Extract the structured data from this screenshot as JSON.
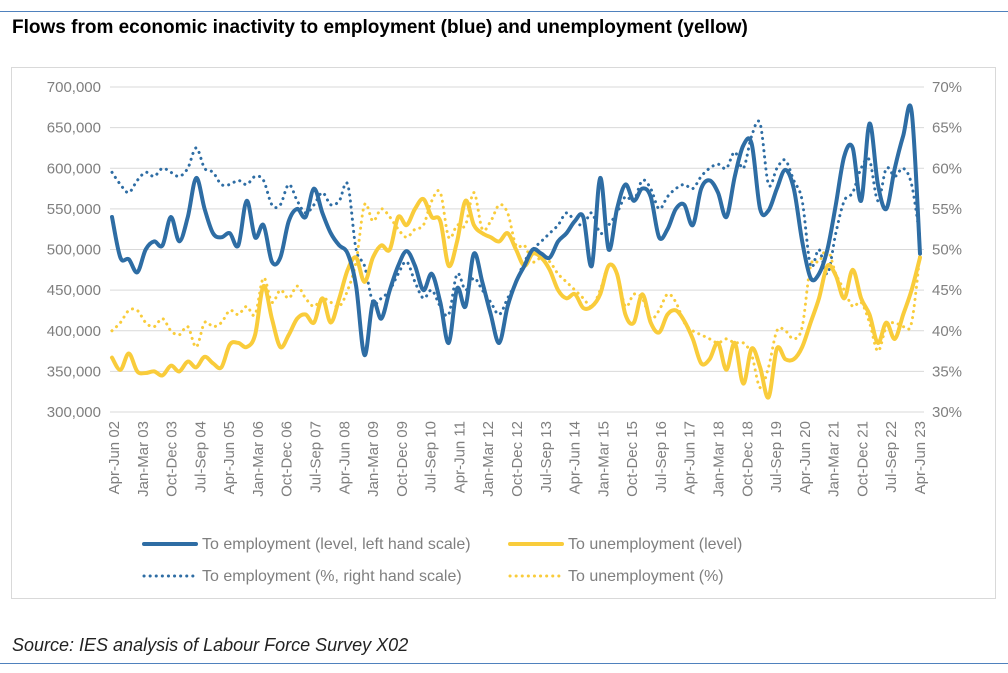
{
  "title": "Flows from economic inactivity to employment (blue) and unemployment (yellow)",
  "source": "Source: IES analysis of Labour Force Survey X02",
  "colors": {
    "blue": "#2e6da4",
    "yellow": "#f9cc3b",
    "axis_text": "#7f7f7f",
    "grid": "#d9d9d9"
  },
  "chart_data": {
    "type": "line",
    "title": "",
    "x_tick_labels": [
      "Apr-Jun 02",
      "Jan-Mar 03",
      "Oct-Dec 03",
      "Jul-Sep 04",
      "Apr-Jun 05",
      "Jan-Mar 06",
      "Oct-Dec 06",
      "Jul-Sep 07",
      "Apr-Jun 08",
      "Jan-Mar 09",
      "Oct-Dec 09",
      "Jul-Sep 10",
      "Apr-Jun 11",
      "Jan-Mar 12",
      "Oct-Dec 12",
      "Jul-Sep 13",
      "Apr-Jun 14",
      "Jan-Mar 15",
      "Oct-Dec 15",
      "Jul-Sep 16",
      "Apr-Jun 17",
      "Jan-Mar 18",
      "Oct-Dec 18",
      "Jul-Sep 19",
      "Apr-Jun 20",
      "Jan-Mar 21",
      "Oct-Dec 21",
      "Jul-Sep 22",
      "Apr-Jun 23"
    ],
    "y_left": {
      "ylim": [
        300000,
        700000
      ],
      "ticks": [
        "300,000",
        "350,000",
        "400,000",
        "450,000",
        "500,000",
        "550,000",
        "600,000",
        "650,000",
        "700,000"
      ]
    },
    "y_right": {
      "ylim": [
        30,
        70
      ],
      "ticks": [
        "30%",
        "35%",
        "40%",
        "45%",
        "50%",
        "55%",
        "60%",
        "65%",
        "70%"
      ]
    },
    "legend_position": "bottom",
    "series": [
      {
        "name": "To employment (level, left hand scale)",
        "axis": "left",
        "style": "solid",
        "color": "#2e6da4",
        "values": [
          540000,
          490000,
          488000,
          472000,
          500000,
          510000,
          505000,
          540000,
          510000,
          540000,
          588000,
          550000,
          520000,
          515000,
          520000,
          505000,
          560000,
          515000,
          530000,
          485000,
          490000,
          535000,
          550000,
          540000,
          575000,
          545000,
          520000,
          505000,
          495000,
          455000,
          370000,
          435000,
          415000,
          450000,
          480000,
          498000,
          480000,
          450000,
          470000,
          435000,
          385000,
          452000,
          430000,
          495000,
          460000,
          420000,
          385000,
          430000,
          460000,
          480000,
          500000,
          495000,
          490000,
          510000,
          520000,
          535000,
          540000,
          480000,
          588000,
          500000,
          550000,
          580000,
          560000,
          575000,
          565000,
          515000,
          525000,
          550000,
          555000,
          530000,
          575000,
          585000,
          570000,
          540000,
          590000,
          628000,
          630000,
          550000,
          548000,
          575000,
          598000,
          575000,
          510000,
          465000,
          470000,
          500000,
          555000,
          615000,
          625000,
          560000,
          655000,
          580000,
          550000,
          600000,
          640000,
          670000,
          495000
        ]
      },
      {
        "name": "To unemployment (level)",
        "axis": "left",
        "style": "solid",
        "color": "#f9cc3b",
        "values": [
          367000,
          352000,
          372000,
          350000,
          348000,
          350000,
          345000,
          357000,
          350000,
          362000,
          355000,
          368000,
          360000,
          355000,
          383000,
          385000,
          380000,
          395000,
          455000,
          415000,
          380000,
          395000,
          415000,
          420000,
          410000,
          440000,
          410000,
          440000,
          475000,
          490000,
          460000,
          490000,
          505000,
          500000,
          540000,
          530000,
          550000,
          562000,
          540000,
          535000,
          480000,
          510000,
          560000,
          530000,
          520000,
          515000,
          510000,
          520000,
          500000,
          480000,
          495000,
          490000,
          475000,
          450000,
          440000,
          445000,
          428000,
          430000,
          445000,
          480000,
          470000,
          420000,
          410000,
          445000,
          410000,
          398000,
          420000,
          425000,
          412000,
          390000,
          360000,
          365000,
          385000,
          352000,
          385000,
          335000,
          378000,
          355000,
          318000,
          378000,
          365000,
          365000,
          380000,
          410000,
          440000,
          480000,
          468000,
          440000,
          475000,
          440000,
          420000,
          385000,
          410000,
          390000,
          420000,
          450000,
          490000
        ]
      },
      {
        "name": "To employment (%, right hand scale)",
        "axis": "right",
        "style": "dotted",
        "color": "#2e6da4",
        "values": [
          59.5,
          58,
          57,
          58.5,
          59.5,
          59,
          60,
          59.5,
          59,
          60,
          62.5,
          60,
          59.5,
          58,
          58,
          58.5,
          58,
          59,
          58.5,
          55.5,
          55.5,
          58,
          56,
          54.5,
          55.5,
          57,
          55.5,
          56,
          58,
          50,
          48,
          43.5,
          44,
          45,
          47,
          48.5,
          46,
          44,
          45,
          43,
          42,
          47,
          45,
          46.5,
          45,
          43.5,
          42,
          44,
          46,
          48.5,
          50,
          51,
          52,
          53,
          54.5,
          53.5,
          53,
          54.5,
          52,
          53,
          54.5,
          56.5,
          56,
          58.5,
          57.5,
          55,
          56.5,
          57.5,
          58,
          57.5,
          59,
          60,
          60.5,
          60,
          62,
          60,
          64,
          65.5,
          58,
          60,
          61,
          58.5,
          56,
          48,
          50,
          47,
          52,
          56,
          57,
          60,
          61,
          56,
          60,
          59,
          60,
          58,
          51.5
        ]
      },
      {
        "name": "To unemployment (%)",
        "axis": "right",
        "style": "dotted",
        "color": "#f9cc3b",
        "values": [
          40,
          41,
          42.5,
          42.5,
          41,
          40.5,
          41.5,
          40,
          39.5,
          40.5,
          38,
          41,
          40.5,
          41,
          42.5,
          42,
          43,
          42,
          46.5,
          43.5,
          45,
          44,
          45.5,
          44,
          43,
          44,
          43.5,
          43,
          45,
          48.5,
          55.5,
          53.5,
          55,
          54,
          52.5,
          51.5,
          52.5,
          53,
          56,
          57,
          51.5,
          53,
          53,
          57,
          52.5,
          53.5,
          55.5,
          54.5,
          50.5,
          50.5,
          48.5,
          49,
          48.5,
          47,
          46,
          45,
          44,
          43,
          45,
          48,
          47,
          43,
          44.5,
          44,
          41.5,
          42.5,
          44.5,
          43.5,
          41,
          40,
          39.5,
          39,
          38.5,
          39,
          38.5,
          38.5,
          37,
          33,
          35.5,
          40,
          40,
          39,
          40.5,
          48,
          48.5,
          50,
          47,
          45,
          43,
          43.5,
          41,
          37.5,
          40.5,
          41,
          40.5,
          41,
          49.5
        ]
      }
    ]
  }
}
